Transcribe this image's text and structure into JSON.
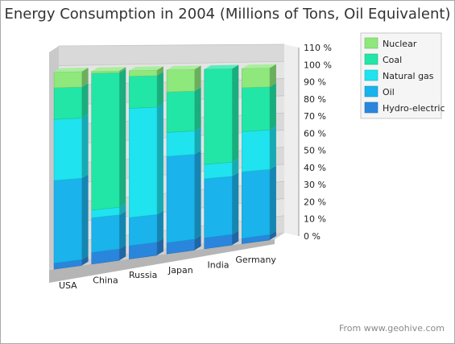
{
  "chart_data": {
    "type": "bar",
    "stacked": "percent",
    "three_d": true,
    "title": "Energy Consumption in 2004 (Millions of Tons, Oil Equivalent)",
    "source": "From www.geohive.com",
    "categories": [
      "USA",
      "China",
      "Russia",
      "Japan",
      "India",
      "Germany"
    ],
    "series": [
      {
        "name": "Hydro-electric",
        "color": "#2a86dc",
        "values": [
          3,
          6,
          7,
          6,
          6,
          3
        ]
      },
      {
        "name": "Oil",
        "color": "#1ab3ec",
        "values": [
          42,
          18,
          15,
          47,
          33,
          38
        ]
      },
      {
        "name": "Natural gas",
        "color": "#1fe3ef",
        "values": [
          31,
          4,
          58,
          13,
          8,
          23
        ]
      },
      {
        "name": "Coal",
        "color": "#22e6a6",
        "values": [
          16,
          71,
          17,
          22,
          53,
          25
        ]
      },
      {
        "name": "Nuclear",
        "color": "#8ee87c",
        "values": [
          8,
          1,
          3,
          12,
          0,
          11
        ]
      }
    ],
    "yaxis": {
      "min": 0,
      "max": 110,
      "step": 10,
      "unit": "%",
      "tick_labels": [
        "0 %",
        "10 %",
        "20 %",
        "30 %",
        "40 %",
        "50 %",
        "60 %",
        "70 %",
        "80 %",
        "90 %",
        "100 %",
        "110 %"
      ]
    },
    "legend_position": "top-right",
    "legend_order": [
      "Nuclear",
      "Coal",
      "Natural gas",
      "Oil",
      "Hydro-electric"
    ],
    "grid": true
  }
}
